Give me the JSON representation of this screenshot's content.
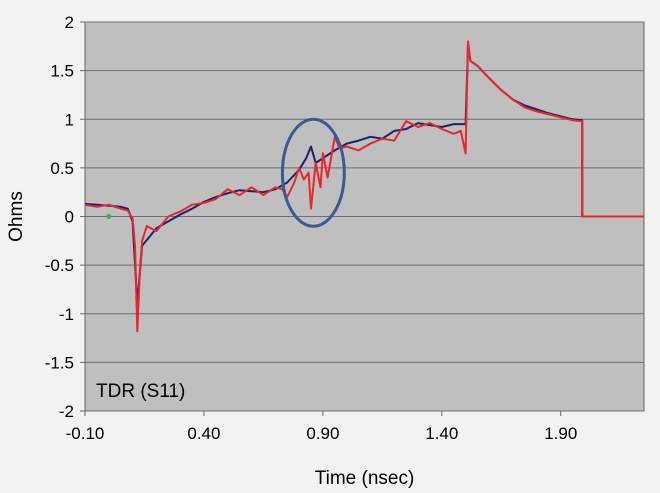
{
  "chart_data": {
    "type": "line",
    "title": "",
    "annotation_label": "TDR (S11)",
    "xlabel": "Time (nsec)",
    "ylabel": "Ohms",
    "xlim": [
      -0.1,
      2.25
    ],
    "ylim": [
      -2,
      2
    ],
    "x_ticks": [
      -0.1,
      0.4,
      0.9,
      1.4,
      1.9
    ],
    "x_tick_labels": [
      "-0.10",
      "0.40",
      "0.90",
      "1.40",
      "1.90"
    ],
    "y_ticks": [
      2,
      1.5,
      1,
      0.5,
      0,
      -0.5,
      -1,
      -1.5,
      -2
    ],
    "y_tick_labels": [
      "2",
      "1.5",
      "1",
      "0.5",
      "0",
      "-0.5",
      "-1",
      "-1.5",
      "-2"
    ],
    "grid": "horizontal",
    "plot_background": "#bfbfbf",
    "colors": {
      "series_dark": "#1f1f6e",
      "series_red": "#e8262b",
      "ellipse": "#3b5a95",
      "marker": "#3cb04a"
    },
    "series": [
      {
        "color": "#1f1f6e",
        "x": [
          -0.1,
          -0.05,
          0.0,
          0.05,
          0.08,
          0.1,
          0.12,
          0.14,
          0.2,
          0.25,
          0.3,
          0.35,
          0.4,
          0.45,
          0.5,
          0.55,
          0.6,
          0.65,
          0.7,
          0.75,
          0.8,
          0.83,
          0.85,
          0.87,
          0.9,
          0.95,
          1.0,
          1.05,
          1.1,
          1.15,
          1.2,
          1.25,
          1.3,
          1.35,
          1.4,
          1.45,
          1.5,
          1.51,
          1.52,
          1.55,
          1.6,
          1.65,
          1.7,
          1.75,
          1.8,
          1.85,
          1.9,
          1.95,
          1.99,
          1.99,
          2.25
        ],
        "y": [
          0.13,
          0.12,
          0.11,
          0.1,
          0.08,
          -0.05,
          -0.9,
          -0.3,
          -0.12,
          -0.05,
          0.02,
          0.08,
          0.15,
          0.2,
          0.24,
          0.27,
          0.26,
          0.25,
          0.28,
          0.35,
          0.48,
          0.6,
          0.72,
          0.55,
          0.6,
          0.68,
          0.75,
          0.78,
          0.82,
          0.8,
          0.88,
          0.9,
          0.96,
          0.94,
          0.92,
          0.95,
          0.95,
          1.75,
          1.6,
          1.55,
          1.42,
          1.3,
          1.2,
          1.14,
          1.1,
          1.06,
          1.03,
          1.0,
          0.99,
          0.0,
          0.0
        ]
      },
      {
        "color": "#e8262b",
        "x": [
          -0.1,
          -0.05,
          0.0,
          0.05,
          0.08,
          0.1,
          0.11,
          0.12,
          0.13,
          0.14,
          0.16,
          0.2,
          0.25,
          0.3,
          0.35,
          0.4,
          0.45,
          0.5,
          0.55,
          0.6,
          0.65,
          0.7,
          0.73,
          0.75,
          0.78,
          0.8,
          0.82,
          0.84,
          0.85,
          0.87,
          0.89,
          0.9,
          0.92,
          0.95,
          0.97,
          1.0,
          1.05,
          1.1,
          1.15,
          1.2,
          1.25,
          1.3,
          1.35,
          1.4,
          1.45,
          1.48,
          1.5,
          1.51,
          1.52,
          1.55,
          1.6,
          1.65,
          1.7,
          1.75,
          1.8,
          1.85,
          1.9,
          1.95,
          1.99,
          1.99,
          2.25
        ],
        "y": [
          0.12,
          0.1,
          0.12,
          0.08,
          0.06,
          -0.02,
          -0.3,
          -1.18,
          -0.6,
          -0.25,
          -0.1,
          -0.15,
          0.0,
          0.05,
          0.12,
          0.14,
          0.18,
          0.28,
          0.22,
          0.3,
          0.22,
          0.3,
          0.28,
          0.2,
          0.35,
          0.5,
          0.38,
          0.45,
          0.08,
          0.55,
          0.3,
          0.65,
          0.4,
          0.82,
          0.7,
          0.72,
          0.68,
          0.75,
          0.8,
          0.78,
          0.98,
          0.92,
          0.96,
          0.9,
          0.85,
          0.88,
          0.65,
          1.8,
          1.6,
          1.55,
          1.42,
          1.3,
          1.2,
          1.12,
          1.08,
          1.05,
          1.02,
          0.99,
          0.98,
          0.0,
          0.0
        ]
      }
    ],
    "highlight_ellipse": {
      "cx": 0.86,
      "cy": 0.45,
      "rx": 0.13,
      "ry": 0.55
    },
    "marker_point": {
      "x": 0.0,
      "y": 0.0
    }
  }
}
